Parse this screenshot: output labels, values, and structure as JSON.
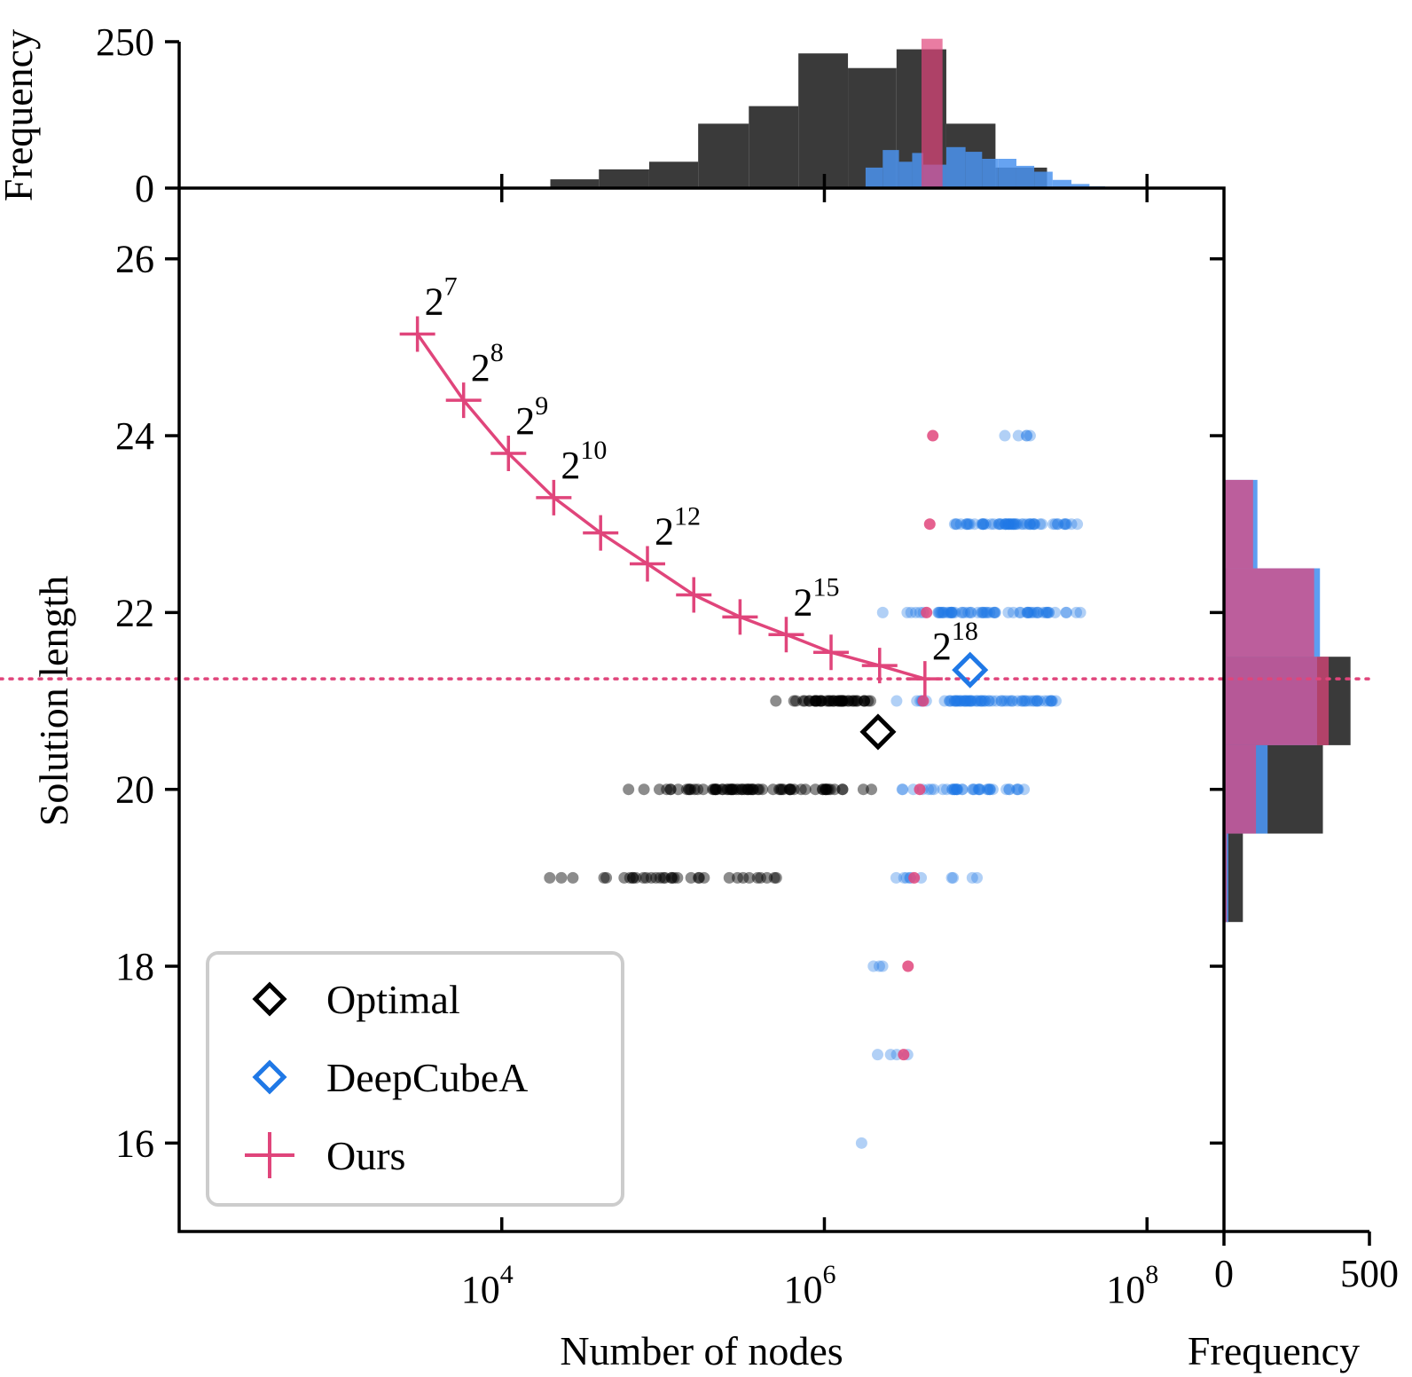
{
  "colors": {
    "ours": "#e0457b",
    "deepcubea": "#1f78e6",
    "optimal": "#000000",
    "hist_black": "#3a3a3a",
    "hist_blue": "#4b93ef",
    "hist_pink": "#e0457b",
    "hist_purple": "#b0508a"
  },
  "chart_data": {
    "type": "scatter",
    "xlabel": "Number of nodes",
    "ylabel": "Solution length",
    "xscale": "log",
    "xlim": [
      100,
      300000000
    ],
    "ylim": [
      15,
      26.8
    ],
    "xticks": [
      {
        "value": 10000,
        "base": "10",
        "exp": "4"
      },
      {
        "value": 1000000,
        "base": "10",
        "exp": "6"
      },
      {
        "value": 100000000,
        "base": "10",
        "exp": "8"
      }
    ],
    "yticks": [
      16,
      18,
      20,
      22,
      24,
      26
    ],
    "ours_curve": {
      "name": "Ours",
      "points": [
        {
          "x": 3000,
          "y": 25.15,
          "label_base": "2",
          "label_exp": "7"
        },
        {
          "x": 5800,
          "y": 24.4,
          "label_base": "2",
          "label_exp": "8"
        },
        {
          "x": 11000,
          "y": 23.8,
          "label_base": "2",
          "label_exp": "9"
        },
        {
          "x": 21000,
          "y": 23.3,
          "label_base": "2",
          "label_exp": "10"
        },
        {
          "x": 41000,
          "y": 22.9,
          "label_base": "",
          "label_exp": ""
        },
        {
          "x": 80000,
          "y": 22.55,
          "label_base": "2",
          "label_exp": "12"
        },
        {
          "x": 155000,
          "y": 22.2,
          "label_base": "",
          "label_exp": ""
        },
        {
          "x": 300000,
          "y": 21.95,
          "label_base": "",
          "label_exp": ""
        },
        {
          "x": 580000,
          "y": 21.75,
          "label_base": "2",
          "label_exp": "15"
        },
        {
          "x": 1100000,
          "y": 21.55,
          "label_base": "",
          "label_exp": ""
        },
        {
          "x": 2200000,
          "y": 21.4,
          "label_base": "",
          "label_exp": ""
        },
        {
          "x": 4200000,
          "y": 21.25,
          "label_base": "2",
          "label_exp": "18"
        }
      ]
    },
    "ours_mean_line": 21.25,
    "optimal_mean": {
      "name": "Optimal",
      "x": 2150000,
      "y": 20.65
    },
    "deepcubea_mean": {
      "name": "DeepCubeA",
      "x": 8000000,
      "y": 21.35
    },
    "optimal_scatter": [
      {
        "y": 21,
        "xmin": 500000,
        "xmax": 2200000,
        "n": 46
      },
      {
        "y": 20,
        "xmin": 45000,
        "xmax": 2200000,
        "n": 70
      },
      {
        "y": 19,
        "xmin": 17000,
        "xmax": 600000,
        "n": 34
      }
    ],
    "deepcubea_scatter": [
      {
        "y": 24,
        "xmin": 12000000,
        "xmax": 22000000,
        "n": 5
      },
      {
        "y": 23,
        "xmin": 3800000,
        "xmax": 45000000,
        "n": 60
      },
      {
        "y": 22,
        "xmin": 2200000,
        "xmax": 40000000,
        "n": 64
      },
      {
        "y": 21,
        "xmin": 2200000,
        "xmax": 38000000,
        "n": 70
      },
      {
        "y": 20,
        "xmin": 2200000,
        "xmax": 22000000,
        "n": 40
      },
      {
        "y": 19,
        "xmin": 2100000,
        "xmax": 10000000,
        "n": 10
      },
      {
        "y": 18,
        "xmin": 1900000,
        "xmax": 2400000,
        "n": 3
      },
      {
        "y": 17,
        "xmin": 1800000,
        "xmax": 3300000,
        "n": 4
      },
      {
        "y": 16,
        "xmin": 1700000,
        "xmax": 1700000,
        "n": 1
      }
    ],
    "ours_scatter": [
      {
        "x": 4700000,
        "y": 24
      },
      {
        "x": 4500000,
        "y": 23
      },
      {
        "x": 4300000,
        "y": 22
      },
      {
        "x": 4100000,
        "y": 21
      },
      {
        "x": 3900000,
        "y": 20
      },
      {
        "x": 3600000,
        "y": 19
      },
      {
        "x": 3300000,
        "y": 18
      },
      {
        "x": 3100000,
        "y": 17
      }
    ],
    "top_histogram": {
      "ylabel": "Frequency",
      "ylim": [
        0,
        250
      ],
      "yticks": [
        0,
        250
      ],
      "optimal": [
        {
          "x0": 20000,
          "x1": 40000,
          "v": 15
        },
        {
          "x0": 40000,
          "x1": 82000,
          "v": 32
        },
        {
          "x0": 82000,
          "x1": 165000,
          "v": 45
        },
        {
          "x0": 165000,
          "x1": 340000,
          "v": 110
        },
        {
          "x0": 340000,
          "x1": 690000,
          "v": 140
        },
        {
          "x0": 690000,
          "x1": 1400000,
          "v": 230
        },
        {
          "x0": 1400000,
          "x1": 2800000,
          "v": 205
        },
        {
          "x0": 2800000,
          "x1": 5700000,
          "v": 237
        },
        {
          "x0": 5700000,
          "x1": 11500000,
          "v": 110
        },
        {
          "x0": 11500000,
          "x1": 24000000,
          "v": 35
        }
      ],
      "deepcubea": [
        {
          "x0": 1800000,
          "x1": 2300000,
          "v": 35
        },
        {
          "x0": 2300000,
          "x1": 2900000,
          "v": 65
        },
        {
          "x0": 2900000,
          "x1": 3500000,
          "v": 45
        },
        {
          "x0": 3500000,
          "x1": 4100000,
          "v": 60
        },
        {
          "x0": 4100000,
          "x1": 5700000,
          "v": 40
        },
        {
          "x0": 5700000,
          "x1": 7500000,
          "v": 70
        },
        {
          "x0": 7500000,
          "x1": 9500000,
          "v": 62
        },
        {
          "x0": 9500000,
          "x1": 12000000,
          "v": 50
        },
        {
          "x0": 12000000,
          "x1": 15500000,
          "v": 50
        },
        {
          "x0": 15500000,
          "x1": 20000000,
          "v": 38
        },
        {
          "x0": 20000000,
          "x1": 26000000,
          "v": 28
        },
        {
          "x0": 26000000,
          "x1": 34000000,
          "v": 14
        },
        {
          "x0": 34000000,
          "x1": 44000000,
          "v": 7
        },
        {
          "x0": 44000000,
          "x1": 55000000,
          "v": 3
        }
      ],
      "ours": [
        {
          "x0": 4000000,
          "x1": 5400000,
          "v": 255
        }
      ]
    },
    "right_histogram": {
      "xlabel": "Frequency",
      "xlim": [
        0,
        500
      ],
      "xticks": [
        0,
        500
      ],
      "optimal": [
        {
          "y0": 18.5,
          "y1": 19.5,
          "v": 65
        },
        {
          "y0": 19.5,
          "y1": 20.5,
          "v": 340
        },
        {
          "y0": 20.5,
          "y1": 21.5,
          "v": 435
        },
        {
          "y0": 21.5,
          "y1": 22.5,
          "v": 10
        },
        {
          "y0": 22.5,
          "y1": 23.5,
          "v": 2
        }
      ],
      "deepcubea": [
        {
          "y0": 18.5,
          "y1": 19.5,
          "v": 15
        },
        {
          "y0": 19.5,
          "y1": 20.5,
          "v": 150
        },
        {
          "y0": 20.5,
          "y1": 21.5,
          "v": 320
        },
        {
          "y0": 21.5,
          "y1": 22.5,
          "v": 330
        },
        {
          "y0": 22.5,
          "y1": 23.5,
          "v": 115
        }
      ],
      "ours": [
        {
          "y0": 18.5,
          "y1": 19.5,
          "v": 10
        },
        {
          "y0": 19.5,
          "y1": 20.5,
          "v": 110
        },
        {
          "y0": 20.5,
          "y1": 21.5,
          "v": 360
        },
        {
          "y0": 21.5,
          "y1": 22.5,
          "v": 310
        },
        {
          "y0": 22.5,
          "y1": 23.5,
          "v": 100
        }
      ]
    },
    "legend": {
      "placement": "lower-left",
      "entries": [
        {
          "key": "optimal",
          "label": "Optimal"
        },
        {
          "key": "deepcubea",
          "label": "DeepCubeA"
        },
        {
          "key": "ours",
          "label": "Ours"
        }
      ]
    }
  }
}
